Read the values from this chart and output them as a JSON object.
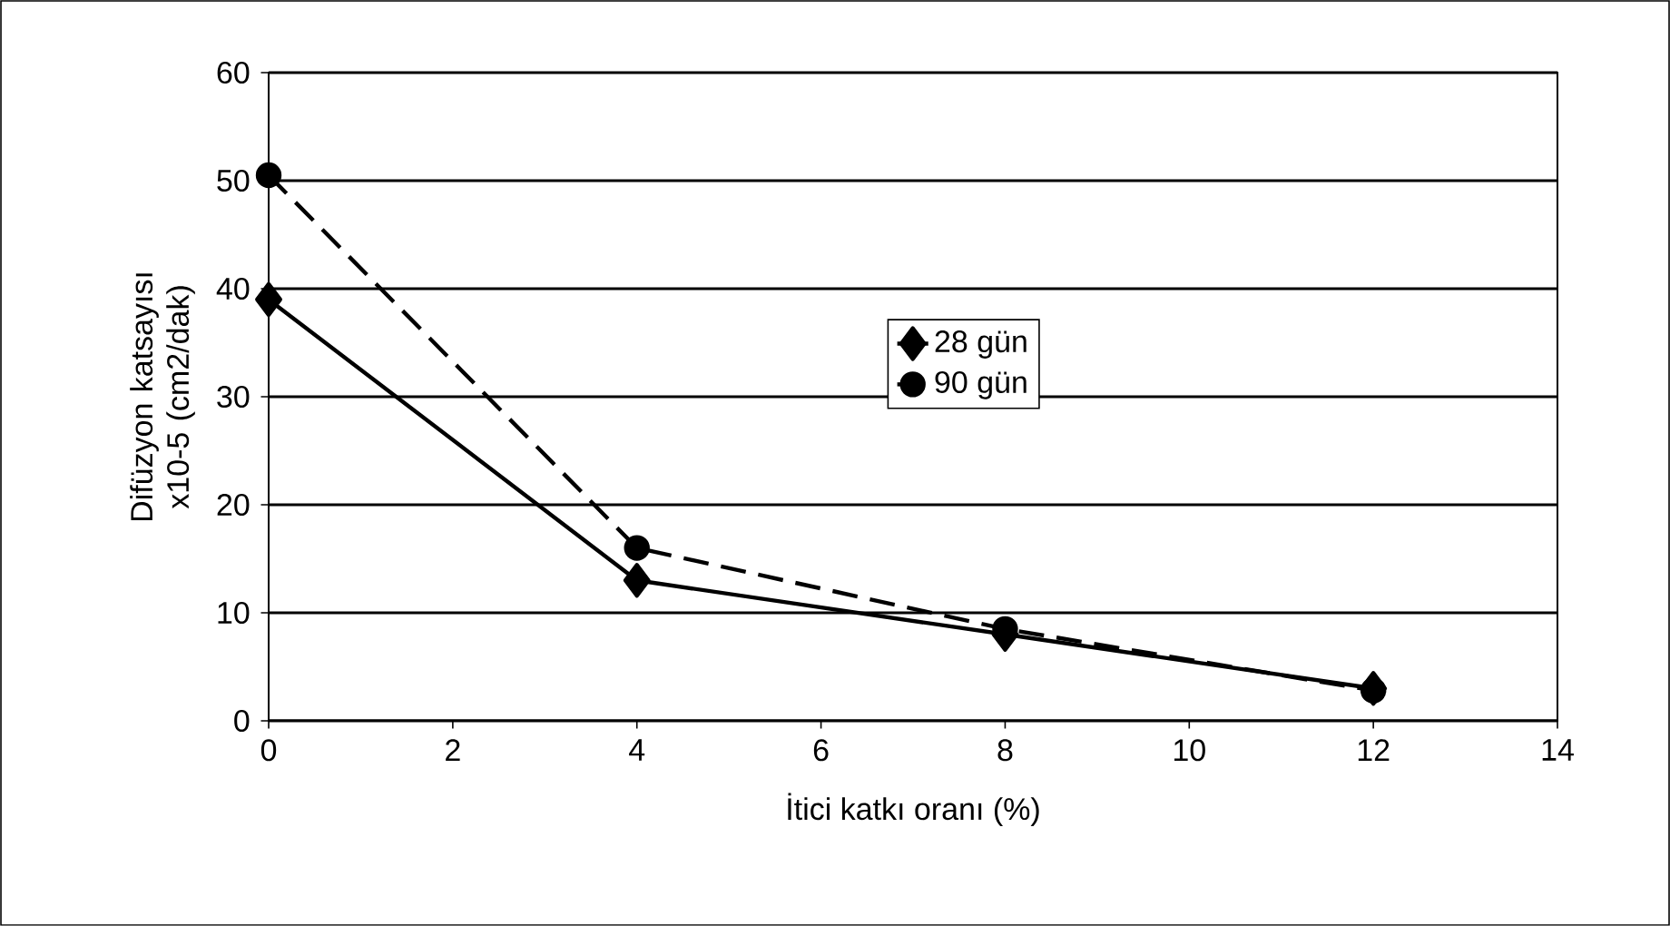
{
  "chart_data": {
    "type": "line",
    "xlabel": "İtici katkı oranı (%)",
    "ylabel": "Difüzyon katsayısı x10-5 (cm2/dak)",
    "x": [
      0,
      4,
      8,
      12
    ],
    "series": [
      {
        "name": "28 gün",
        "color": "#000000",
        "values": [
          39,
          13,
          8,
          3
        ],
        "marker": "diamond",
        "line_style": "solid"
      },
      {
        "name": "90 gün",
        "color": "#000000",
        "values": [
          50.5,
          16,
          8.5,
          2.8
        ],
        "marker": "circle",
        "line_style": "dashed"
      }
    ],
    "xlim": [
      0,
      14
    ],
    "xticks": [
      0,
      2,
      4,
      6,
      8,
      10,
      12,
      14
    ],
    "ylim": [
      0,
      60
    ],
    "yticks": [
      0,
      10,
      20,
      30,
      40,
      50,
      60
    ],
    "grid": "y",
    "legend": "right"
  }
}
